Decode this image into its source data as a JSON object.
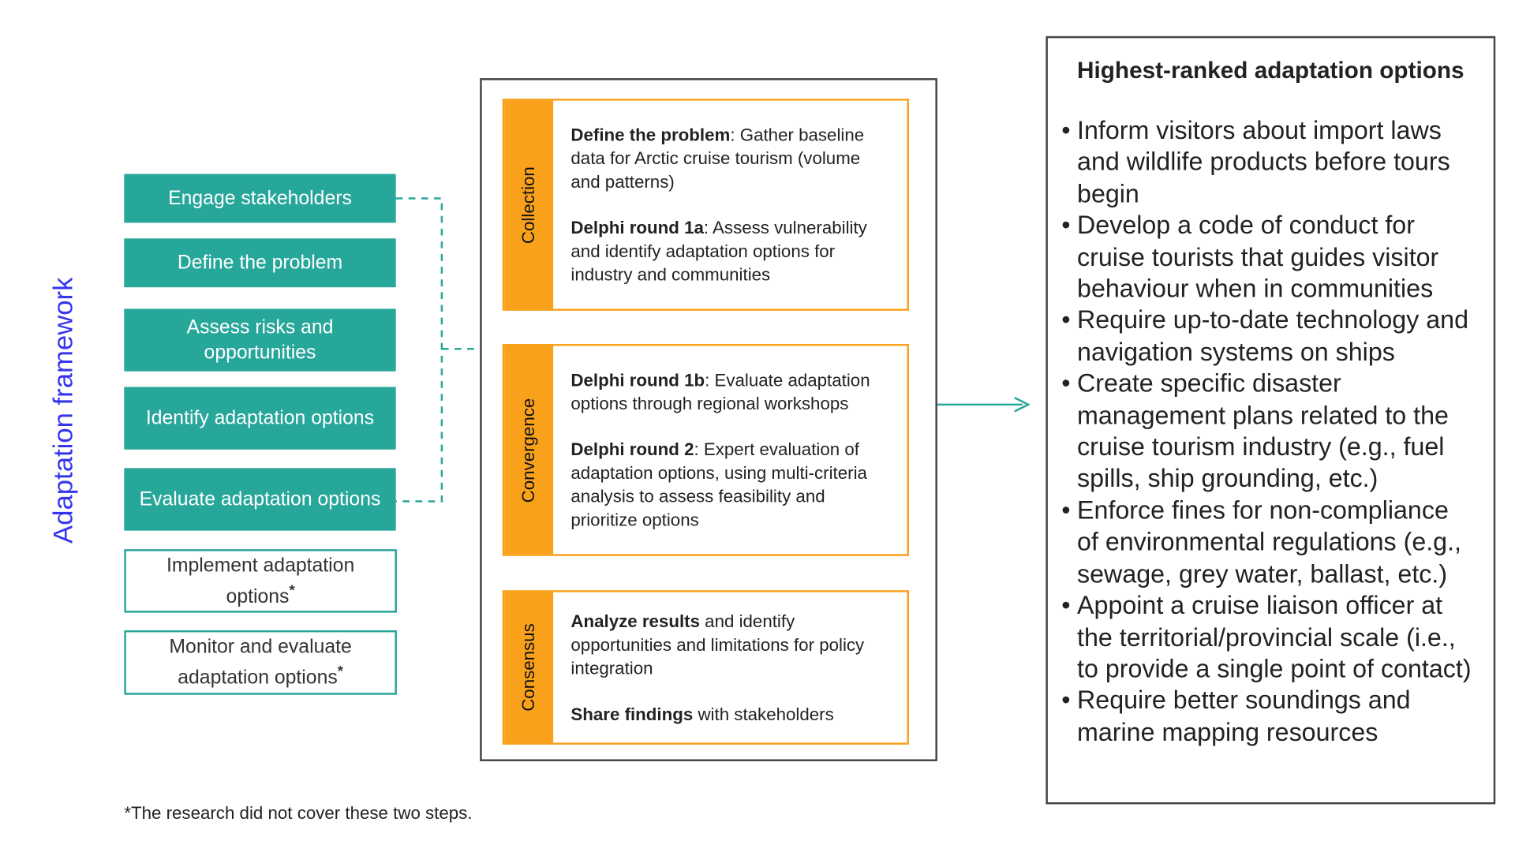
{
  "framework_label": "Adaptation framework",
  "steps": [
    "Engage stakeholders",
    "Define the problem",
    "Assess risks and opportunities",
    "Identify adaptation options",
    "Evaluate adaptation options"
  ],
  "uncovered_steps": [
    "Implement adaptation options",
    "Monitor and evaluate adaptation options"
  ],
  "footnote_marker": "*",
  "phases": [
    {
      "name": "Collection",
      "items": [
        {
          "bold": "Define the problem",
          "text": ": Gather baseline data for Arctic cruise tourism (volume and patterns)"
        },
        {
          "bold": "Delphi round 1a",
          "text": ": Assess vulnerability and identify adaptation options for industry and communities"
        }
      ]
    },
    {
      "name": "Convergence",
      "items": [
        {
          "bold": "Delphi round 1b",
          "text": ": Evaluate adaptation options through regional workshops"
        },
        {
          "bold": "Delphi round 2",
          "text": ": Expert evaluation of adaptation options, using multi-criteria analysis to assess feasibility and prioritize options"
        }
      ]
    },
    {
      "name": "Consensus",
      "items": [
        {
          "bold": "Analyze results",
          "text": " and identify opportunities and limitations for policy integration"
        },
        {
          "bold": "Share findings",
          "text": " with stakeholders"
        }
      ]
    }
  ],
  "results": {
    "title": "Highest-ranked adaptation options",
    "items": [
      "Inform visitors about import laws and wildlife products before tours begin",
      "Develop a code of conduct for cruise tourists that guides visitor behaviour when in communities",
      "Require up-to-date technology and navigation systems on ships",
      "Create specific disaster management plans related to the cruise tourism industry (e.g., fuel spills, ship grounding, etc.)",
      "Enforce fines for non-compliance of environmental regulations (e.g., sewage, grey water, ballast, etc.)",
      "Appoint a cruise liaison officer at the territorial/provincial scale (i.e., to provide a single point of contact)",
      "Require better soundings and marine mapping resources"
    ]
  },
  "footnote": "*The research did not cover these two steps."
}
